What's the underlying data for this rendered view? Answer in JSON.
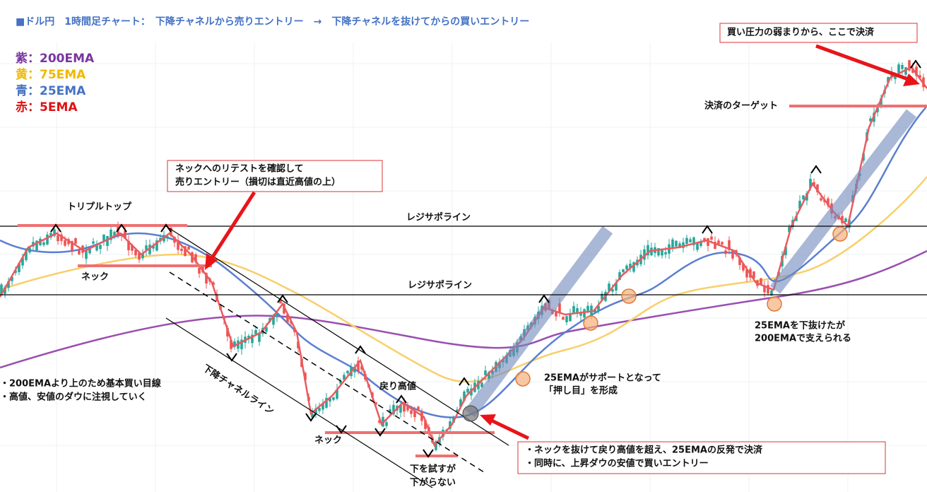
{
  "title": "■ドル円　1時間足チャート：　下降チャネルから売りエントリー　→　下降チャネルを抜けてからの買いエントリー",
  "legend": [
    "紫：200EMA",
    "黄：75EMA",
    "青：25EMA",
    "赤：5EMA"
  ],
  "annotations": {
    "exit_box": "買い圧力の弱まりから、ここで決済",
    "exit_target": "決済のターゲット",
    "sell_entry": [
      "ネックへのリテストを確認して",
      "売りエントリー（損切は直近高値の上）"
    ],
    "triple_top": "トリプルトップ",
    "resist_support_upper": "レジサポライン",
    "resist_support_lower": "レジサポライン",
    "neck_left": "ネック",
    "channel_line": "下降チャネルライン",
    "left_notes": [
      "・200EMAより上のため基本買い目線",
      "・高値、安値のダウに注視していく"
    ],
    "pullback_high": "戻り高値",
    "neck_bottom": "ネック",
    "test_low": [
      "下を試すが",
      "下がらない"
    ],
    "buy_entry": [
      "・ネックを抜けて戻り高値を超え、25EMAの反発で決済",
      "・同時に、上昇ダウの安値で買いエントリー"
    ],
    "support_25ema": [
      "25EMAがサポートとなって",
      "「押し目」を形成"
    ],
    "support_200ema": [
      "25EMAを下抜けたが",
      "200EMAで支えられる"
    ]
  }
}
